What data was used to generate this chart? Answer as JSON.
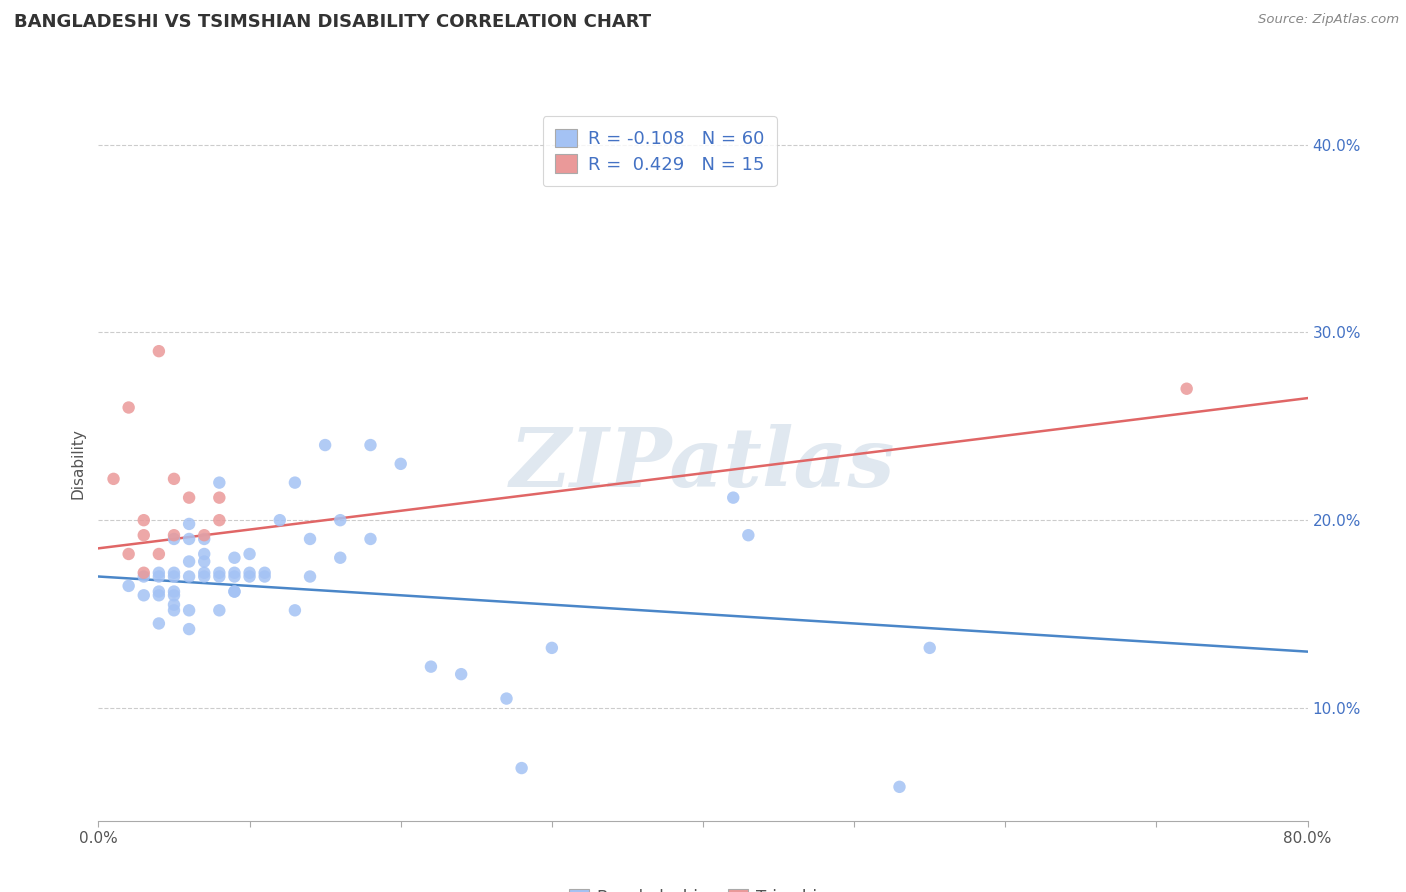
{
  "title": "BANGLADESHI VS TSIMSHIAN DISABILITY CORRELATION CHART",
  "source": "Source: ZipAtlas.com",
  "ylabel": "Disability",
  "xlim": [
    0.0,
    0.8
  ],
  "ylim": [
    0.04,
    0.42
  ],
  "yticks": [
    0.1,
    0.2,
    0.3,
    0.4
  ],
  "yticklabels": [
    "10.0%",
    "20.0%",
    "30.0%",
    "40.0%"
  ],
  "blue_color": "#a4c2f4",
  "pink_color": "#ea9999",
  "blue_line_color": "#4a86c8",
  "pink_line_color": "#e06666",
  "r_blue": -0.108,
  "n_blue": 60,
  "r_pink": 0.429,
  "n_pink": 15,
  "legend_r_color": "#4472c4",
  "watermark_text": "ZIPatlas",
  "blue_scatter_x": [
    0.02,
    0.03,
    0.03,
    0.04,
    0.04,
    0.04,
    0.04,
    0.04,
    0.05,
    0.05,
    0.05,
    0.05,
    0.05,
    0.05,
    0.05,
    0.06,
    0.06,
    0.06,
    0.06,
    0.06,
    0.06,
    0.07,
    0.07,
    0.07,
    0.07,
    0.07,
    0.08,
    0.08,
    0.08,
    0.08,
    0.09,
    0.09,
    0.09,
    0.09,
    0.09,
    0.1,
    0.1,
    0.1,
    0.11,
    0.11,
    0.12,
    0.13,
    0.13,
    0.14,
    0.14,
    0.15,
    0.16,
    0.16,
    0.18,
    0.18,
    0.2,
    0.22,
    0.24,
    0.27,
    0.28,
    0.3,
    0.42,
    0.43,
    0.53,
    0.55
  ],
  "blue_scatter_y": [
    0.165,
    0.16,
    0.17,
    0.16,
    0.162,
    0.17,
    0.172,
    0.145,
    0.152,
    0.155,
    0.16,
    0.162,
    0.17,
    0.19,
    0.172,
    0.152,
    0.17,
    0.178,
    0.19,
    0.198,
    0.142,
    0.17,
    0.172,
    0.178,
    0.19,
    0.182,
    0.17,
    0.172,
    0.152,
    0.22,
    0.162,
    0.17,
    0.18,
    0.172,
    0.162,
    0.17,
    0.172,
    0.182,
    0.172,
    0.17,
    0.2,
    0.152,
    0.22,
    0.17,
    0.19,
    0.24,
    0.18,
    0.2,
    0.19,
    0.24,
    0.23,
    0.122,
    0.118,
    0.105,
    0.068,
    0.132,
    0.212,
    0.192,
    0.058,
    0.132
  ],
  "pink_scatter_x": [
    0.01,
    0.02,
    0.02,
    0.03,
    0.03,
    0.03,
    0.04,
    0.04,
    0.05,
    0.05,
    0.06,
    0.07,
    0.08,
    0.08,
    0.72
  ],
  "pink_scatter_y": [
    0.222,
    0.26,
    0.182,
    0.2,
    0.192,
    0.172,
    0.182,
    0.29,
    0.192,
    0.222,
    0.212,
    0.192,
    0.2,
    0.212,
    0.27
  ],
  "blue_line_x": [
    0.0,
    0.8
  ],
  "blue_line_y": [
    0.17,
    0.13
  ],
  "pink_line_x": [
    0.0,
    0.8
  ],
  "pink_line_y": [
    0.185,
    0.265
  ]
}
